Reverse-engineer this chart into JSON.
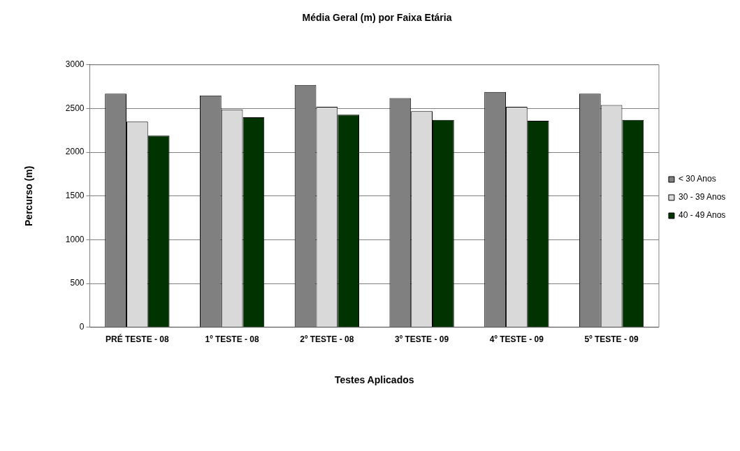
{
  "chart_data": {
    "type": "bar",
    "title": "Média Geral (m) por Faixa Etária",
    "xlabel": "Testes Aplicados",
    "ylabel": "Percurso (m)",
    "categories": [
      "PRÉ TESTE - 08",
      "1º TESTE - 08",
      "2º TESTE - 08",
      "3º TESTE - 09",
      "4º TESTE - 09",
      "5º TESTE - 09"
    ],
    "series": [
      {
        "name": "< 30 Anos",
        "color": "#808080",
        "values": [
          2670,
          2650,
          2770,
          2620,
          2690,
          2670
        ]
      },
      {
        "name": "30 - 39 Anos",
        "color": "#d9d9d9",
        "values": [
          2350,
          2490,
          2520,
          2470,
          2520,
          2540
        ]
      },
      {
        "name": "40 - 49 Anos",
        "color": "#003300",
        "values": [
          2190,
          2400,
          2430,
          2370,
          2360,
          2370
        ]
      }
    ],
    "ylim": [
      0,
      3000
    ],
    "yticks": [
      0,
      500,
      1000,
      1500,
      2000,
      2500,
      3000
    ],
    "grid": "y",
    "legend": "right"
  }
}
